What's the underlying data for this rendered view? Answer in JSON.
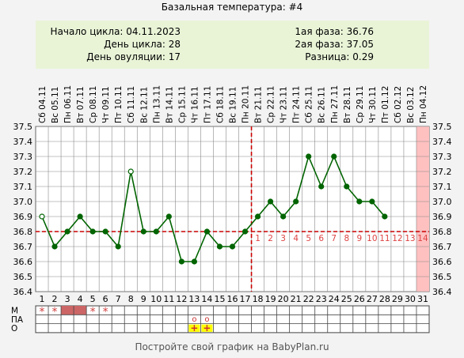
{
  "title": "Базальная температура: #4",
  "info": {
    "cycle_start": "Начало цикла: 04.11.2023",
    "cycle_day": "День цикла: 28",
    "ovulation_day": "День овуляции: 17",
    "phase1": "1ая фаза: 36.76",
    "phase2": "2ая фаза: 37.05",
    "difference": "Разница: 0.29"
  },
  "footer": "Постройте свой график на BabyPlan.ru",
  "colors": {
    "line": "#006400",
    "coverline": "#cc0000",
    "ovulation": "#cc0000",
    "menses": "#cc6666",
    "future_day": "#ffc0c0",
    "grid": "#888888",
    "lp_numbers": "#dd4444",
    "marker_yellow": "#ffff00"
  },
  "chart_data": {
    "type": "line",
    "title": "Базальная температура: #4",
    "days": [
      1,
      2,
      3,
      4,
      5,
      6,
      7,
      8,
      9,
      10,
      11,
      12,
      13,
      14,
      15,
      16,
      17,
      18,
      19,
      20,
      21,
      22,
      23,
      24,
      25,
      26,
      27,
      28,
      29,
      30,
      31
    ],
    "dates": [
      "Сб 04.11",
      "Вс 05.11",
      "Пн 06.11",
      "Вт 07.11",
      "Ср 08.11",
      "Чт 09.11",
      "Пт 10.11",
      "Сб 11.11",
      "Вс 12.11",
      "Пн 13.11",
      "Вт 14.11",
      "Ср 15.11",
      "Чт 16.11",
      "Пт 17.11",
      "Сб 18.11",
      "Вс 19.11",
      "Пн 20.11",
      "Вт 21.11",
      "Ср 22.11",
      "Чт 23.11",
      "Пт 24.11",
      "Сб 25.11",
      "Вс 26.11",
      "Пн 27.11",
      "Вт 28.11",
      "Ср 29.11",
      "Чт 30.11",
      "Пт 01.12",
      "Сб 02.12",
      "Вс 03.12",
      "Пн 04.12"
    ],
    "temperatures": [
      36.9,
      36.7,
      36.8,
      36.9,
      36.8,
      36.8,
      36.7,
      37.2,
      36.8,
      36.8,
      36.9,
      36.6,
      36.6,
      36.8,
      36.7,
      36.7,
      36.8,
      36.9,
      37.0,
      36.9,
      37.0,
      37.3,
      37.1,
      37.3,
      37.1,
      37.0,
      37.0,
      36.9
    ],
    "open_markers": [
      1,
      8
    ],
    "ylim": [
      36.4,
      37.5
    ],
    "yticks": [
      "36.4",
      "36.5",
      "36.6",
      "36.7",
      "36.8",
      "36.9",
      "37.0",
      "37.1",
      "37.2",
      "37.3",
      "37.4",
      "37.5"
    ],
    "coverline": 36.8,
    "ovulation_day": 17,
    "future_highlight_day": 31,
    "luteal_numbers": [
      "1",
      "2",
      "3",
      "4",
      "5",
      "6",
      "7",
      "8",
      "9",
      "10",
      "11",
      "12",
      "13",
      "14"
    ],
    "luteal_start_day": 18,
    "rows": [
      "М",
      "ПА",
      "О"
    ],
    "menses_star_days": [
      1,
      2,
      5,
      6
    ],
    "menses_filled_days": [
      3,
      4
    ],
    "pa_circle_days": [
      13,
      14
    ],
    "o_plus_days": [
      13,
      14
    ],
    "star_symbol": "*",
    "circle_symbol": "o",
    "plus_symbol": "+"
  }
}
